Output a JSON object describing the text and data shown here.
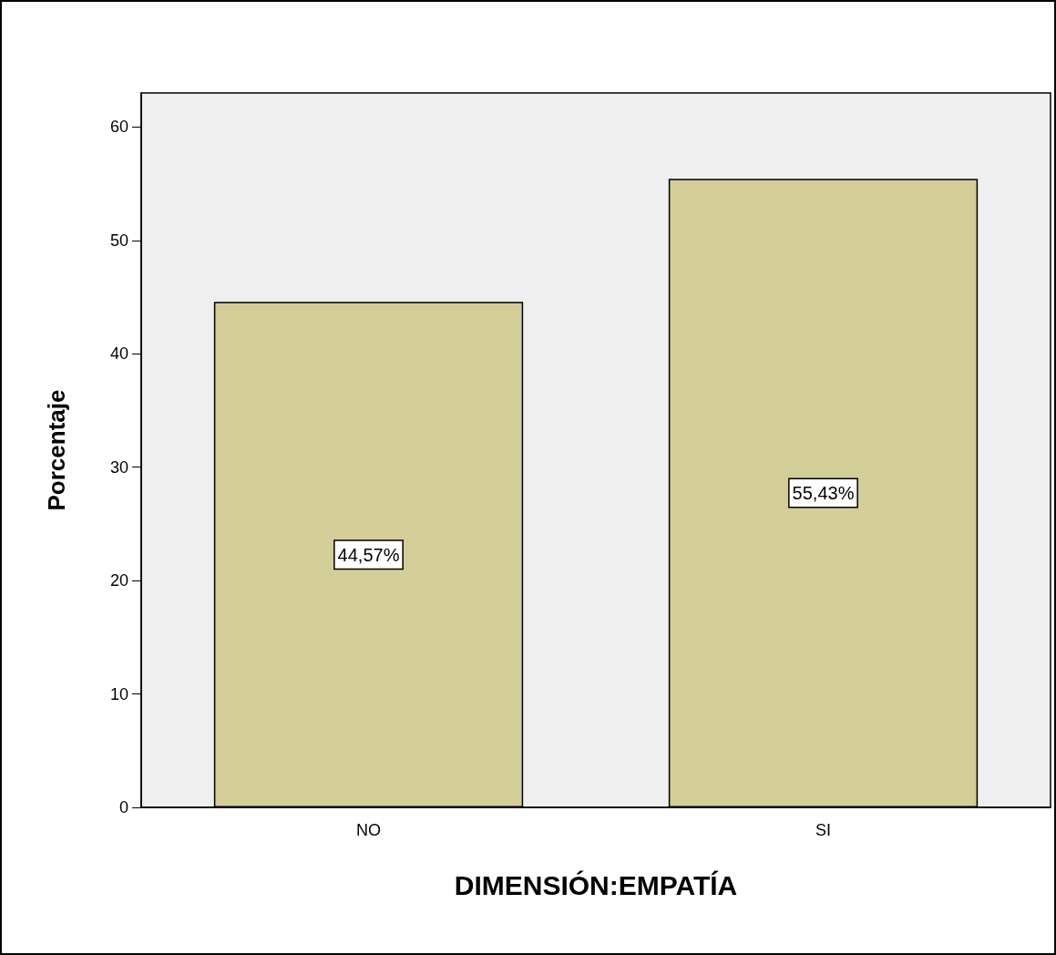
{
  "chart_data": {
    "type": "bar",
    "xlabel": "DIMENSIÓN:EMPATÍA",
    "ylabel": "Porcentaje",
    "categories": [
      "NO",
      "SI"
    ],
    "values": [
      44.57,
      55.43
    ],
    "value_labels": [
      "44,57%",
      "55,43%"
    ],
    "color": "#d3cd98",
    "ylim": [
      0,
      63
    ],
    "yticks": [
      0,
      10,
      20,
      30,
      40,
      50,
      60
    ],
    "grid": false
  }
}
